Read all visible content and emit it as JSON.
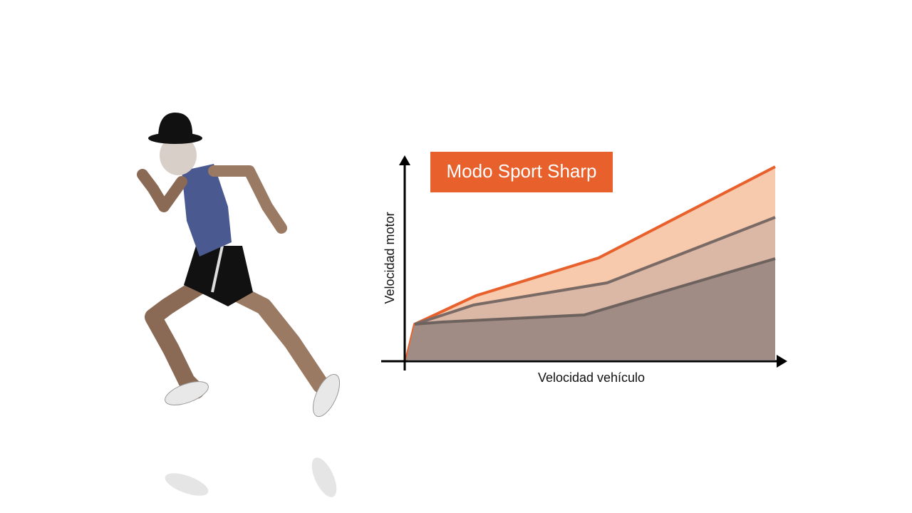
{
  "diagram": {
    "title": "Modo Sport Sharp",
    "y_axis_label": "Velocidad motor",
    "x_axis_label": "Velocidad vehículo"
  }
}
